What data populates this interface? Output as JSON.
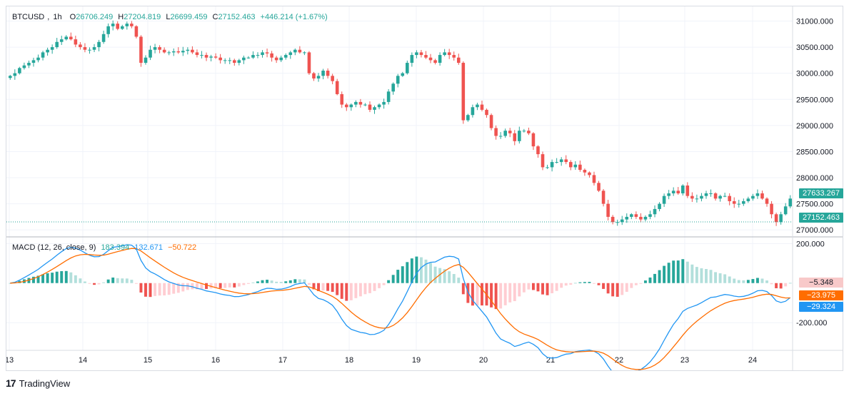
{
  "header": {
    "symbol": "BTCUSD",
    "interval": "1h",
    "open_label": "O",
    "open": "26706.249",
    "high_label": "H",
    "high": "27204.819",
    "low_label": "L",
    "low": "26699.459",
    "close_label": "C",
    "close": "27152.463",
    "change": "+446.214 (+1.67%)"
  },
  "macd_legend": {
    "name": "MACD (12, 26, close, 9)",
    "histogram": "183.394",
    "macd": "132.671",
    "signal": "−50.722"
  },
  "price_badges": {
    "upper": "27633.267",
    "last": "27152.463"
  },
  "macd_badges": {
    "histogram": "−5.348",
    "signal": "−23.975",
    "macd": "−29.324"
  },
  "footer": {
    "logo": "17",
    "brand": "TradingView"
  },
  "colors": {
    "up": "#26a69a",
    "down": "#ef5350",
    "up_light": "#b2dfdb",
    "down_light": "#ffcdd2",
    "macd_line": "#2196f3",
    "signal_line": "#ff6d00",
    "grid": "#f0f3fa",
    "badge_hist": "#f8c9c9"
  },
  "chart_data": [
    {
      "type": "candlestick",
      "title": "BTCUSD, 1h",
      "y_ticks": [
        "31000.000",
        "30500.000",
        "30000.000",
        "29500.000",
        "29000.000",
        "28500.000",
        "28000.000",
        "27500.000",
        "27000.000"
      ],
      "y_tick_values": [
        31000,
        30500,
        30000,
        29500,
        29000,
        28500,
        28000,
        27500,
        27000
      ],
      "ylim": [
        26880,
        31280
      ],
      "x_ticks": [
        "13",
        "14",
        "15",
        "16",
        "17",
        "18",
        "19",
        "20",
        "21",
        "22",
        "23",
        "24"
      ],
      "close_series_hourly": [
        29950,
        30000,
        30100,
        30150,
        30200,
        30250,
        30300,
        30400,
        30450,
        30500,
        30600,
        30650,
        30700,
        30650,
        30550,
        30500,
        30450,
        30450,
        30500,
        30600,
        30750,
        30900,
        30950,
        30850,
        30900,
        30950,
        30900,
        30700,
        30200,
        30300,
        30450,
        30500,
        30450,
        30400,
        30400,
        30420,
        30400,
        30430,
        30450,
        30400,
        30350,
        30350,
        30300,
        30320,
        30300,
        30250,
        30250,
        30250,
        30200,
        30250,
        30300,
        30300,
        30350,
        30350,
        30400,
        30380,
        30300,
        30250,
        30300,
        30350,
        30400,
        30450,
        30400,
        30400,
        30000,
        29900,
        29950,
        30050,
        29950,
        29850,
        29600,
        29400,
        29350,
        29400,
        29450,
        29400,
        29400,
        29300,
        29350,
        29400,
        29450,
        29650,
        29800,
        29950,
        30000,
        30200,
        30350,
        30400,
        30350,
        30300,
        30250,
        30200,
        30350,
        30400,
        30350,
        30300,
        30200,
        29100,
        29200,
        29350,
        29400,
        29300,
        29200,
        28950,
        28800,
        28800,
        28900,
        28850,
        28700,
        28900,
        28900,
        28850,
        28600,
        28450,
        28200,
        28200,
        28300,
        28300,
        28350,
        28300,
        28200,
        28250,
        28150,
        28100,
        28050,
        27900,
        27750,
        27500,
        27250,
        27150,
        27150,
        27200,
        27250,
        27300,
        27250,
        27200,
        27250,
        27300,
        27400,
        27500,
        27650,
        27700,
        27750,
        27700,
        27850,
        27650,
        27600,
        27600,
        27650,
        27700,
        27700,
        27600,
        27650,
        27650,
        27550,
        27500,
        27500,
        27550,
        27600,
        27650,
        27700,
        27600,
        27500,
        27300,
        27150,
        27300,
        27450,
        27600
      ],
      "last_price": 27152.463,
      "upper_marked_price": 27633.267
    },
    {
      "type": "line",
      "title": "MACD (12, 26, close, 9)",
      "series": [
        {
          "name": "MACD",
          "color": "#2196f3"
        },
        {
          "name": "Signal",
          "color": "#ff6d00"
        },
        {
          "name": "Histogram",
          "color": "#26a69a"
        }
      ],
      "y_ticks": [
        "200.000",
        "-200.000"
      ],
      "y_tick_values": [
        200,
        -200
      ],
      "ylim": [
        -340,
        230
      ]
    }
  ]
}
